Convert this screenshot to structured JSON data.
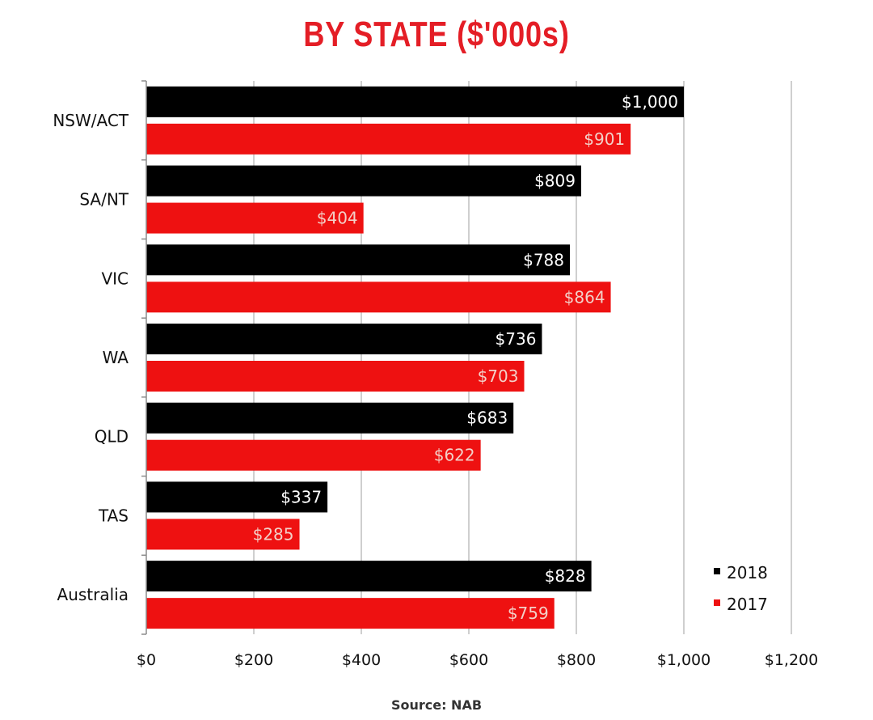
{
  "colors": {
    "title": "#e41e26",
    "series_2018": "#000000",
    "series_2017": "#ee1111",
    "label_2018": "#ffffff",
    "label_2017": "#f3d0c8",
    "grid": "#bfbfbf"
  },
  "chart_data": {
    "type": "bar",
    "orientation": "horizontal",
    "title": "BY STATE ($'000s)",
    "source": "Source: NAB",
    "categories": [
      "NSW/ACT",
      "SA/NT",
      "VIC",
      "WA",
      "QLD",
      "TAS",
      "Australia"
    ],
    "series": [
      {
        "name": "2018",
        "values": [
          1000,
          809,
          788,
          736,
          683,
          337,
          828
        ],
        "labels": [
          "$1,000",
          "$809",
          "$788",
          "$736",
          "$683",
          "$337",
          "$828"
        ]
      },
      {
        "name": "2017",
        "values": [
          901,
          404,
          864,
          703,
          622,
          285,
          759
        ],
        "labels": [
          "$901",
          "$404",
          "$864",
          "$703",
          "$622",
          "$285",
          "$759"
        ]
      }
    ],
    "xlim": [
      0,
      1200
    ],
    "x_ticks": [
      0,
      200,
      400,
      600,
      800,
      1000,
      1200
    ],
    "x_tick_labels": [
      "$0",
      "$200",
      "$400",
      "$600",
      "$800",
      "$1,000",
      "$1,200"
    ],
    "grid": true,
    "legend_position": "bottom-right"
  }
}
